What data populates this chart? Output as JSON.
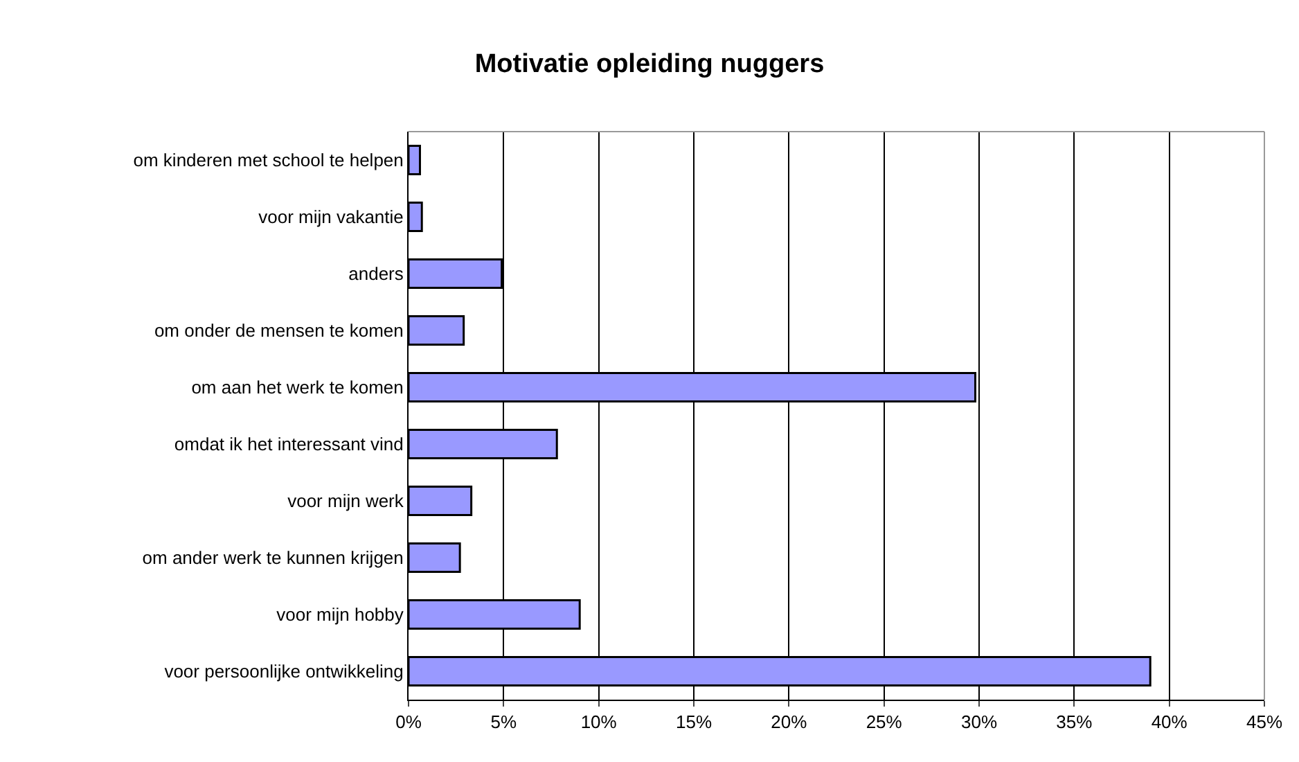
{
  "chart_data": {
    "type": "bar",
    "orientation": "horizontal",
    "title": "Motivatie opleiding nuggers",
    "categories": [
      "om kinderen met school te helpen",
      "voor mijn vakantie",
      "anders",
      "om onder de mensen te komen",
      "om aan het werk te komen",
      "omdat ik het interessant vind",
      "voor mijn werk",
      "om ander werk te kunnen krijgen",
      "voor mijn hobby",
      "voor persoonlijke ontwikkeling"
    ],
    "values": [
      0.6,
      0.7,
      4.9,
      2.9,
      29.8,
      7.8,
      3.3,
      2.7,
      9.0,
      39.0
    ],
    "color": "#9999ff",
    "xlim": [
      0,
      45
    ],
    "xticks": [
      {
        "value": 0,
        "label": "0%"
      },
      {
        "value": 5,
        "label": "5%"
      },
      {
        "value": 10,
        "label": "10%"
      },
      {
        "value": 15,
        "label": "15%"
      },
      {
        "value": 20,
        "label": "20%"
      },
      {
        "value": 25,
        "label": "25%"
      },
      {
        "value": 30,
        "label": "30%"
      },
      {
        "value": 35,
        "label": "35%"
      },
      {
        "value": 40,
        "label": "40%"
      },
      {
        "value": 45,
        "label": "45%"
      }
    ],
    "grid": "x"
  }
}
